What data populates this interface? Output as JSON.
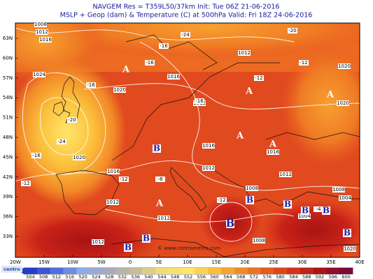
{
  "header": {
    "line1": "NAVGEM Res = T359L50/37km    Init: Tue 06Z 21-06-2016",
    "line2": "MSLP + Geop (dam) & Temperature (C) at 500hPa   Valid: Fri 18Z 24-06-2016"
  },
  "lat_labels": [
    "63N",
    "60N",
    "57N",
    "54N",
    "51N",
    "48N",
    "45N",
    "42N",
    "39N",
    "36N",
    "33N"
  ],
  "lon_labels": [
    "20W",
    "15W",
    "10W",
    "5W",
    "0",
    "5E",
    "10E",
    "15E",
    "20E",
    "25E",
    "30E",
    "35E",
    "40E"
  ],
  "isobar_labels": [
    "1008",
    "1012",
    "1016",
    "1024",
    "1020",
    "1020",
    "1016",
    "1012",
    "1012",
    "1012",
    "1008",
    "1016",
    "1016",
    "1012",
    "1012",
    "1008",
    "1008",
    "1004",
    "1004",
    "1016",
    "1012",
    "1012",
    "1020",
    "1020",
    "1020"
  ],
  "temperature_labels": [
    "-24",
    "-20",
    "-16",
    "-16",
    "-16",
    "-16",
    "-24",
    "-20",
    "-12",
    "-12",
    "-12",
    "-12",
    "-8",
    "-12",
    "-4",
    "-16"
  ],
  "highs": [
    "A",
    "A",
    "A",
    "A",
    "A",
    "A"
  ],
  "lows": [
    "B",
    "B",
    "B",
    "B",
    "B",
    "B",
    "B",
    "B",
    "B"
  ],
  "credit": "© www.centrometeo.com",
  "logo": "centro",
  "colorbar": [
    504,
    508,
    512,
    516,
    520,
    524,
    528,
    532,
    536,
    540,
    544,
    548,
    552,
    556,
    560,
    564,
    568,
    572,
    576,
    580,
    584,
    588,
    592,
    596,
    600
  ]
}
